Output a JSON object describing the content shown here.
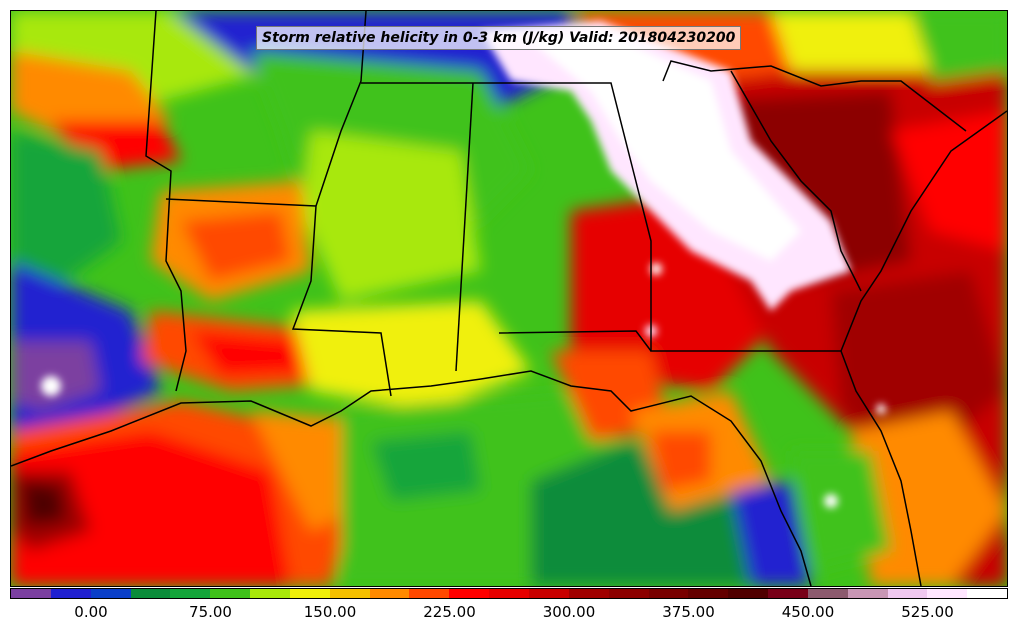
{
  "title": "Storm relative helicity in 0-3 km (J/kg) Valid: 201804230200",
  "colorbar": {
    "colors": [
      "#7b3fa0",
      "#2020d0",
      "#0a3fc8",
      "#0a8c3a",
      "#13a53a",
      "#3fc21a",
      "#a8e80a",
      "#f0f00a",
      "#f5c000",
      "#ff8a00",
      "#ff4800",
      "#ff0000",
      "#e60000",
      "#c80000",
      "#a00000",
      "#8c0000",
      "#780000",
      "#640000",
      "#500000",
      "#780018",
      "#8c5a6e",
      "#c896b4",
      "#f0c8f0",
      "#ffe6ff",
      "#ffffff"
    ],
    "tick_labels": [
      "0.00",
      "75.00",
      "150.00",
      "225.00",
      "300.00",
      "375.00",
      "450.00",
      "525.00"
    ]
  }
}
